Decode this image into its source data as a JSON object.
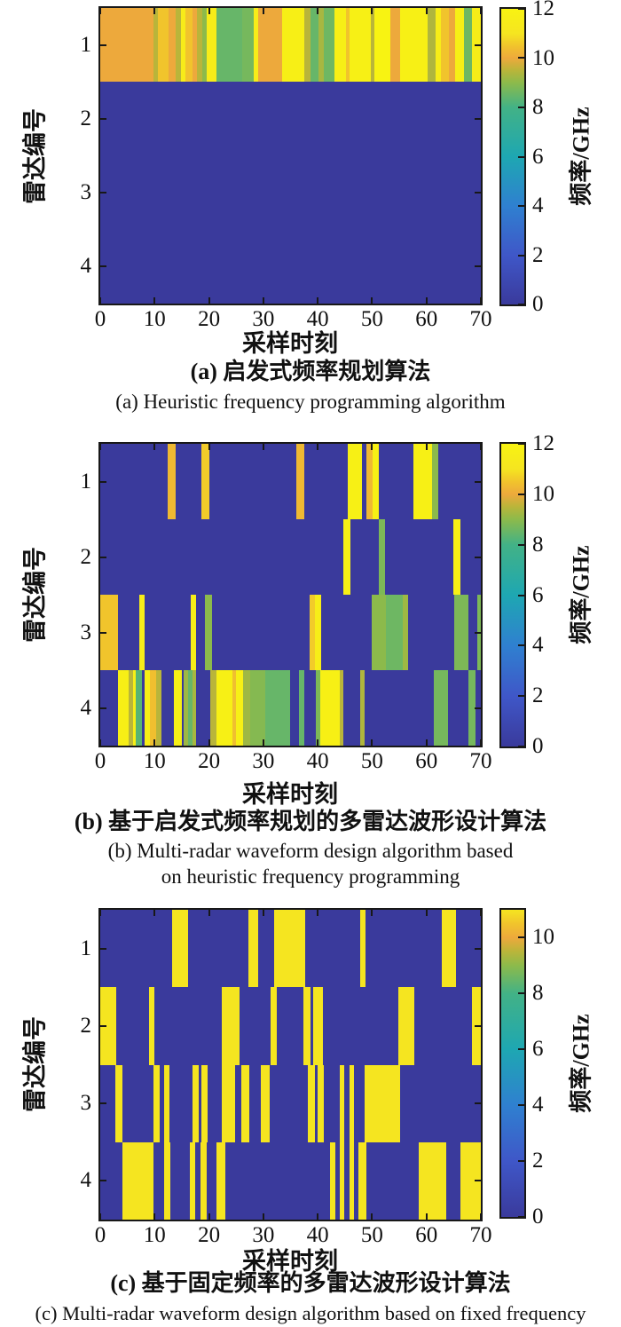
{
  "figure": {
    "background": "#ffffff",
    "colormap_name": "parula",
    "palette_stops": [
      [
        0,
        "#3a3a9c"
      ],
      [
        2,
        "#3f57c8"
      ],
      [
        4,
        "#2f80d0"
      ],
      [
        6,
        "#1ea7b2"
      ],
      [
        8,
        "#42b286"
      ],
      [
        9,
        "#8cba4b"
      ],
      [
        9.5,
        "#b9b53a"
      ],
      [
        10,
        "#eda93c"
      ],
      [
        10.5,
        "#f1c42c"
      ],
      [
        11,
        "#f5e520"
      ],
      [
        12,
        "#f8f312"
      ]
    ]
  },
  "chart_data": [
    {
      "type": "heatmap",
      "panel": "a",
      "caption_zh": "(a) 启发式频率规划算法",
      "caption_en_lines": [
        "(a) Heuristic frequency programming algorithm"
      ],
      "xlabel": "采样时刻",
      "ylabel": "雷达编号",
      "cbar_label": "频率/GHz",
      "x_ticks": [
        0,
        10,
        20,
        30,
        40,
        50,
        60,
        70
      ],
      "xmax": 70,
      "y_categories": [
        "1",
        "2",
        "3",
        "4"
      ],
      "cbar_ticks": [
        0,
        2,
        4,
        6,
        8,
        10,
        12
      ],
      "cbar_max": 12,
      "background_value": 0,
      "unit": "GHz",
      "grid": false,
      "colorbar_position": "right",
      "rows": [
        {
          "radar": "1",
          "segments": [
            [
              0,
              9.8,
              10
            ],
            [
              9.8,
              10.6,
              9.5
            ],
            [
              10.6,
              12.5,
              10.5
            ],
            [
              12.5,
              13.8,
              10
            ],
            [
              13.8,
              14.9,
              9.5
            ],
            [
              14.9,
              15.7,
              11.5
            ],
            [
              15.7,
              17,
              10.5
            ],
            [
              17,
              17.8,
              10
            ],
            [
              17.8,
              18.7,
              9.5
            ],
            [
              18.7,
              19.6,
              9
            ],
            [
              19.6,
              21.4,
              11.5
            ],
            [
              21.4,
              26.1,
              8.5
            ],
            [
              26.1,
              28.3,
              8.7
            ],
            [
              28.3,
              29,
              11.5
            ],
            [
              29,
              33.5,
              10
            ],
            [
              33.5,
              37.5,
              11.7
            ],
            [
              37.5,
              38.6,
              9.5
            ],
            [
              38.6,
              40.1,
              8.5
            ],
            [
              40.1,
              41.2,
              9.3
            ],
            [
              41.2,
              43.1,
              8.6
            ],
            [
              43.1,
              45.2,
              11.7
            ],
            [
              45.2,
              45.9,
              10.5
            ],
            [
              45.9,
              49.7,
              11.8
            ],
            [
              49.7,
              50.5,
              9.5
            ],
            [
              50.5,
              53.3,
              12
            ],
            [
              53.3,
              55.2,
              10
            ],
            [
              55.2,
              60.2,
              11.8
            ],
            [
              60.2,
              61.6,
              9.4
            ],
            [
              61.6,
              62.7,
              11.6
            ],
            [
              62.7,
              64.1,
              10.5
            ],
            [
              64.1,
              65.3,
              10
            ],
            [
              65.3,
              66.9,
              11.7
            ],
            [
              66.9,
              68.3,
              8.6
            ],
            [
              68.3,
              70,
              11.6
            ]
          ]
        },
        {
          "radar": "2",
          "segments": []
        },
        {
          "radar": "3",
          "segments": []
        },
        {
          "radar": "4",
          "segments": []
        }
      ]
    },
    {
      "type": "heatmap",
      "panel": "b",
      "caption_zh": "(b) 基于启发式频率规划的多雷达波形设计算法",
      "caption_en_lines": [
        "(b) Multi-radar waveform design algorithm based",
        "on heuristic frequency programming"
      ],
      "xlabel": "采样时刻",
      "ylabel": "雷达编号",
      "cbar_label": "频率/GHz",
      "x_ticks": [
        0,
        10,
        20,
        30,
        40,
        50,
        60,
        70
      ],
      "xmax": 70,
      "y_categories": [
        "1",
        "2",
        "3",
        "4"
      ],
      "cbar_ticks": [
        0,
        2,
        4,
        6,
        8,
        10,
        12
      ],
      "cbar_max": 12,
      "background_value": 0,
      "unit": "GHz",
      "grid": false,
      "colorbar_position": "right",
      "rows": [
        {
          "radar": "1",
          "segments": [
            [
              12.4,
              13.8,
              10.3
            ],
            [
              18.6,
              20,
              10.6
            ],
            [
              36.1,
              37.5,
              10.3
            ],
            [
              45.6,
              48.1,
              11.8
            ],
            [
              48.9,
              50.1,
              10.3
            ],
            [
              50.1,
              51.3,
              11.8
            ],
            [
              57.6,
              61,
              11.8
            ],
            [
              61,
              62.1,
              9
            ]
          ]
        },
        {
          "radar": "2",
          "segments": [
            [
              44.7,
              46,
              11.8
            ],
            [
              51.2,
              52.3,
              8.8
            ],
            [
              65,
              66.3,
              11.8
            ]
          ]
        },
        {
          "radar": "3",
          "segments": [
            [
              0,
              3.2,
              10.5
            ],
            [
              7.1,
              8.2,
              11.6
            ],
            [
              16.6,
              17.6,
              11.6
            ],
            [
              19.3,
              20.6,
              9
            ],
            [
              38.5,
              39.5,
              10.6
            ],
            [
              39.5,
              40.6,
              11.6
            ],
            [
              50,
              52.6,
              9
            ],
            [
              52.6,
              55.6,
              8.6
            ],
            [
              55.6,
              56.7,
              9.2
            ],
            [
              65.1,
              67.7,
              8.8
            ],
            [
              69.4,
              70,
              8.8
            ]
          ]
        },
        {
          "radar": "4",
          "segments": [
            [
              3.2,
              5.2,
              11.7
            ],
            [
              5.2,
              6,
              9.5
            ],
            [
              6,
              6.6,
              11.7
            ],
            [
              6.6,
              7.6,
              8.3
            ],
            [
              8.2,
              9.2,
              11.7
            ],
            [
              9.2,
              10.2,
              10.4
            ],
            [
              10.2,
              11.3,
              9.5
            ],
            [
              13.6,
              15,
              11.7
            ],
            [
              15.4,
              16.1,
              9.2
            ],
            [
              16.1,
              17,
              8.5
            ],
            [
              17,
              17.6,
              9.3
            ],
            [
              20.3,
              21.4,
              9.5
            ],
            [
              21.4,
              24.3,
              11.8
            ],
            [
              24.3,
              25,
              10.4
            ],
            [
              25,
              26.2,
              11.8
            ],
            [
              26.2,
              27.5,
              9.2
            ],
            [
              27.5,
              30.4,
              8.9
            ],
            [
              30.4,
              34.9,
              8.5
            ],
            [
              36.5,
              37.5,
              8.5
            ],
            [
              39.7,
              40.4,
              8.8
            ],
            [
              40.4,
              44,
              11.8
            ],
            [
              44,
              44.7,
              9.5
            ],
            [
              47.8,
              48.7,
              9.4
            ],
            [
              61.3,
              64,
              8.7
            ],
            [
              67.7,
              69,
              8.7
            ]
          ]
        }
      ]
    },
    {
      "type": "heatmap",
      "panel": "c",
      "caption_zh": "(c) 基于固定频率的多雷达波形设计算法",
      "caption_en_lines": [
        "(c) Multi-radar waveform design algorithm based on fixed frequency"
      ],
      "xlabel": "采样时刻",
      "ylabel": "雷达编号",
      "cbar_label": "频率/GHz",
      "x_ticks": [
        0,
        10,
        20,
        30,
        40,
        50,
        60,
        70
      ],
      "xmax": 70,
      "y_categories": [
        "1",
        "2",
        "3",
        "4"
      ],
      "cbar_ticks": [
        0,
        2,
        4,
        6,
        8,
        10
      ],
      "cbar_max": 11,
      "background_value": 0,
      "unit": "GHz",
      "grid": false,
      "colorbar_position": "right",
      "rows": [
        {
          "radar": "1",
          "segments": [
            [
              13.2,
              16.2,
              11
            ],
            [
              27.3,
              29.1,
              11
            ],
            [
              31.9,
              37.7,
              11
            ],
            [
              47.8,
              48.8,
              11
            ],
            [
              62.9,
              65.4,
              11
            ]
          ]
        },
        {
          "radar": "2",
          "segments": [
            [
              0,
              3,
              11
            ],
            [
              9,
              10,
              11
            ],
            [
              22.3,
              25.7,
              11
            ],
            [
              31.4,
              32.4,
              11
            ],
            [
              37.4,
              38.6,
              11
            ],
            [
              39.1,
              40.9,
              11
            ],
            [
              54.8,
              57.8,
              11
            ],
            [
              68.4,
              70,
              11
            ]
          ]
        },
        {
          "radar": "3",
          "segments": [
            [
              2.7,
              4,
              11
            ],
            [
              9.8,
              10.9,
              11
            ],
            [
              11.8,
              12.7,
              11
            ],
            [
              17,
              18.1,
              11
            ],
            [
              18.6,
              19.7,
              11
            ],
            [
              22.4,
              24.8,
              11
            ],
            [
              25.9,
              27.4,
              11
            ],
            [
              29.6,
              31.2,
              11
            ],
            [
              38.2,
              39.5,
              11
            ],
            [
              40,
              41.1,
              11
            ],
            [
              44,
              44.9,
              11
            ],
            [
              45.9,
              46.7,
              11
            ],
            [
              48.6,
              55.2,
              11
            ]
          ]
        },
        {
          "radar": "4",
          "segments": [
            [
              4,
              9.8,
              11
            ],
            [
              11.8,
              12.9,
              11
            ],
            [
              16.4,
              17.5,
              11
            ],
            [
              18.4,
              19.5,
              11
            ],
            [
              21.4,
              23,
              11
            ],
            [
              42.2,
              43.3,
              11
            ],
            [
              44,
              44.9,
              11
            ],
            [
              45.9,
              46.7,
              11
            ],
            [
              47.5,
              48.9,
              11
            ],
            [
              58.5,
              63.7,
              11
            ],
            [
              66.2,
              70,
              11
            ]
          ]
        }
      ]
    }
  ]
}
